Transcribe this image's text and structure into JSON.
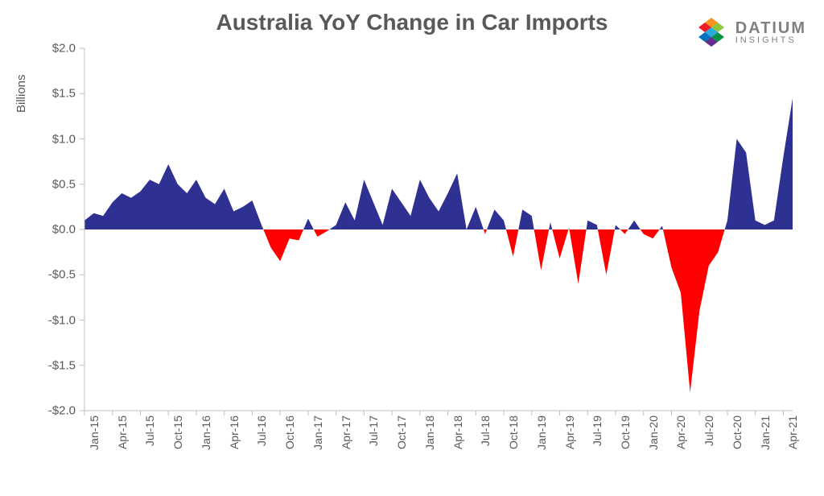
{
  "title": "Australia YoY Change in Car Imports",
  "y_axis_title": "Billions",
  "logo": {
    "line1": "DATIUM",
    "line2": "INSIGHTS"
  },
  "chart": {
    "type": "area",
    "background_color": "#ffffff",
    "positive_fill": "#2e3192",
    "negative_fill": "#ff0000",
    "axis_color": "#bfbfbf",
    "text_color": "#595959",
    "title_fontsize": 28,
    "label_fontsize": 15,
    "xtick_fontsize": 14,
    "ylim": [
      -2.0,
      2.0
    ],
    "ytick_step": 0.5,
    "ytick_format": "$0.0",
    "yticks": [
      {
        "v": 2.0,
        "label": "$2.0"
      },
      {
        "v": 1.5,
        "label": "$1.5"
      },
      {
        "v": 1.0,
        "label": "$1.0"
      },
      {
        "v": 0.5,
        "label": "$0.5"
      },
      {
        "v": 0.0,
        "label": "$0.0"
      },
      {
        "v": -0.5,
        "label": "-$0.5"
      },
      {
        "v": -1.0,
        "label": "-$1.0"
      },
      {
        "v": -1.5,
        "label": "-$1.5"
      },
      {
        "v": -2.0,
        "label": "-$2.0"
      }
    ],
    "xticks": [
      "Jan-15",
      "Apr-15",
      "Jul-15",
      "Oct-15",
      "Jan-16",
      "Apr-16",
      "Jul-16",
      "Oct-16",
      "Jan-17",
      "Apr-17",
      "Jul-17",
      "Oct-17",
      "Jan-18",
      "Apr-18",
      "Jul-18",
      "Oct-18",
      "Jan-19",
      "Apr-19",
      "Jul-19",
      "Oct-19",
      "Jan-20",
      "Apr-20",
      "Jul-20",
      "Oct-20",
      "Jan-21",
      "Apr-21"
    ],
    "series": {
      "labels": [
        "Jan-15",
        "Feb-15",
        "Mar-15",
        "Apr-15",
        "May-15",
        "Jun-15",
        "Jul-15",
        "Aug-15",
        "Sep-15",
        "Oct-15",
        "Nov-15",
        "Dec-15",
        "Jan-16",
        "Feb-16",
        "Mar-16",
        "Apr-16",
        "May-16",
        "Jun-16",
        "Jul-16",
        "Aug-16",
        "Sep-16",
        "Oct-16",
        "Nov-16",
        "Dec-16",
        "Jan-17",
        "Feb-17",
        "Mar-17",
        "Apr-17",
        "May-17",
        "Jun-17",
        "Jul-17",
        "Aug-17",
        "Sep-17",
        "Oct-17",
        "Nov-17",
        "Dec-17",
        "Jan-18",
        "Feb-18",
        "Mar-18",
        "Apr-18",
        "May-18",
        "Jun-18",
        "Jul-18",
        "Aug-18",
        "Sep-18",
        "Oct-18",
        "Nov-18",
        "Dec-18",
        "Jan-19",
        "Feb-19",
        "Mar-19",
        "Apr-19",
        "May-19",
        "Jun-19",
        "Jul-19",
        "Aug-19",
        "Sep-19",
        "Oct-19",
        "Nov-19",
        "Dec-19",
        "Jan-20",
        "Feb-20",
        "Mar-20",
        "Apr-20",
        "May-20",
        "Jun-20",
        "Jul-20",
        "Aug-20",
        "Sep-20",
        "Oct-20",
        "Nov-20",
        "Dec-20",
        "Jan-21",
        "Feb-21",
        "Mar-21",
        "Apr-21",
        "May-21"
      ],
      "values": [
        0.1,
        0.18,
        0.15,
        0.3,
        0.4,
        0.35,
        0.42,
        0.55,
        0.5,
        0.72,
        0.5,
        0.4,
        0.55,
        0.35,
        0.28,
        0.45,
        0.2,
        0.25,
        0.32,
        0.05,
        -0.2,
        -0.35,
        -0.1,
        -0.12,
        0.12,
        -0.08,
        -0.02,
        0.05,
        0.3,
        0.1,
        0.55,
        0.3,
        0.05,
        0.45,
        0.3,
        0.15,
        0.55,
        0.35,
        0.2,
        0.4,
        0.62,
        0.0,
        0.25,
        -0.05,
        0.22,
        0.1,
        -0.3,
        0.22,
        0.15,
        -0.45,
        0.08,
        -0.32,
        0.02,
        -0.6,
        0.1,
        0.05,
        -0.5,
        0.05,
        -0.05,
        0.1,
        -0.05,
        -0.1,
        0.04,
        -0.42,
        -0.7,
        -1.8,
        -0.9,
        -0.4,
        -0.25,
        0.1,
        1.0,
        0.85,
        0.1,
        0.05,
        0.1,
        0.8,
        1.45
      ]
    }
  }
}
